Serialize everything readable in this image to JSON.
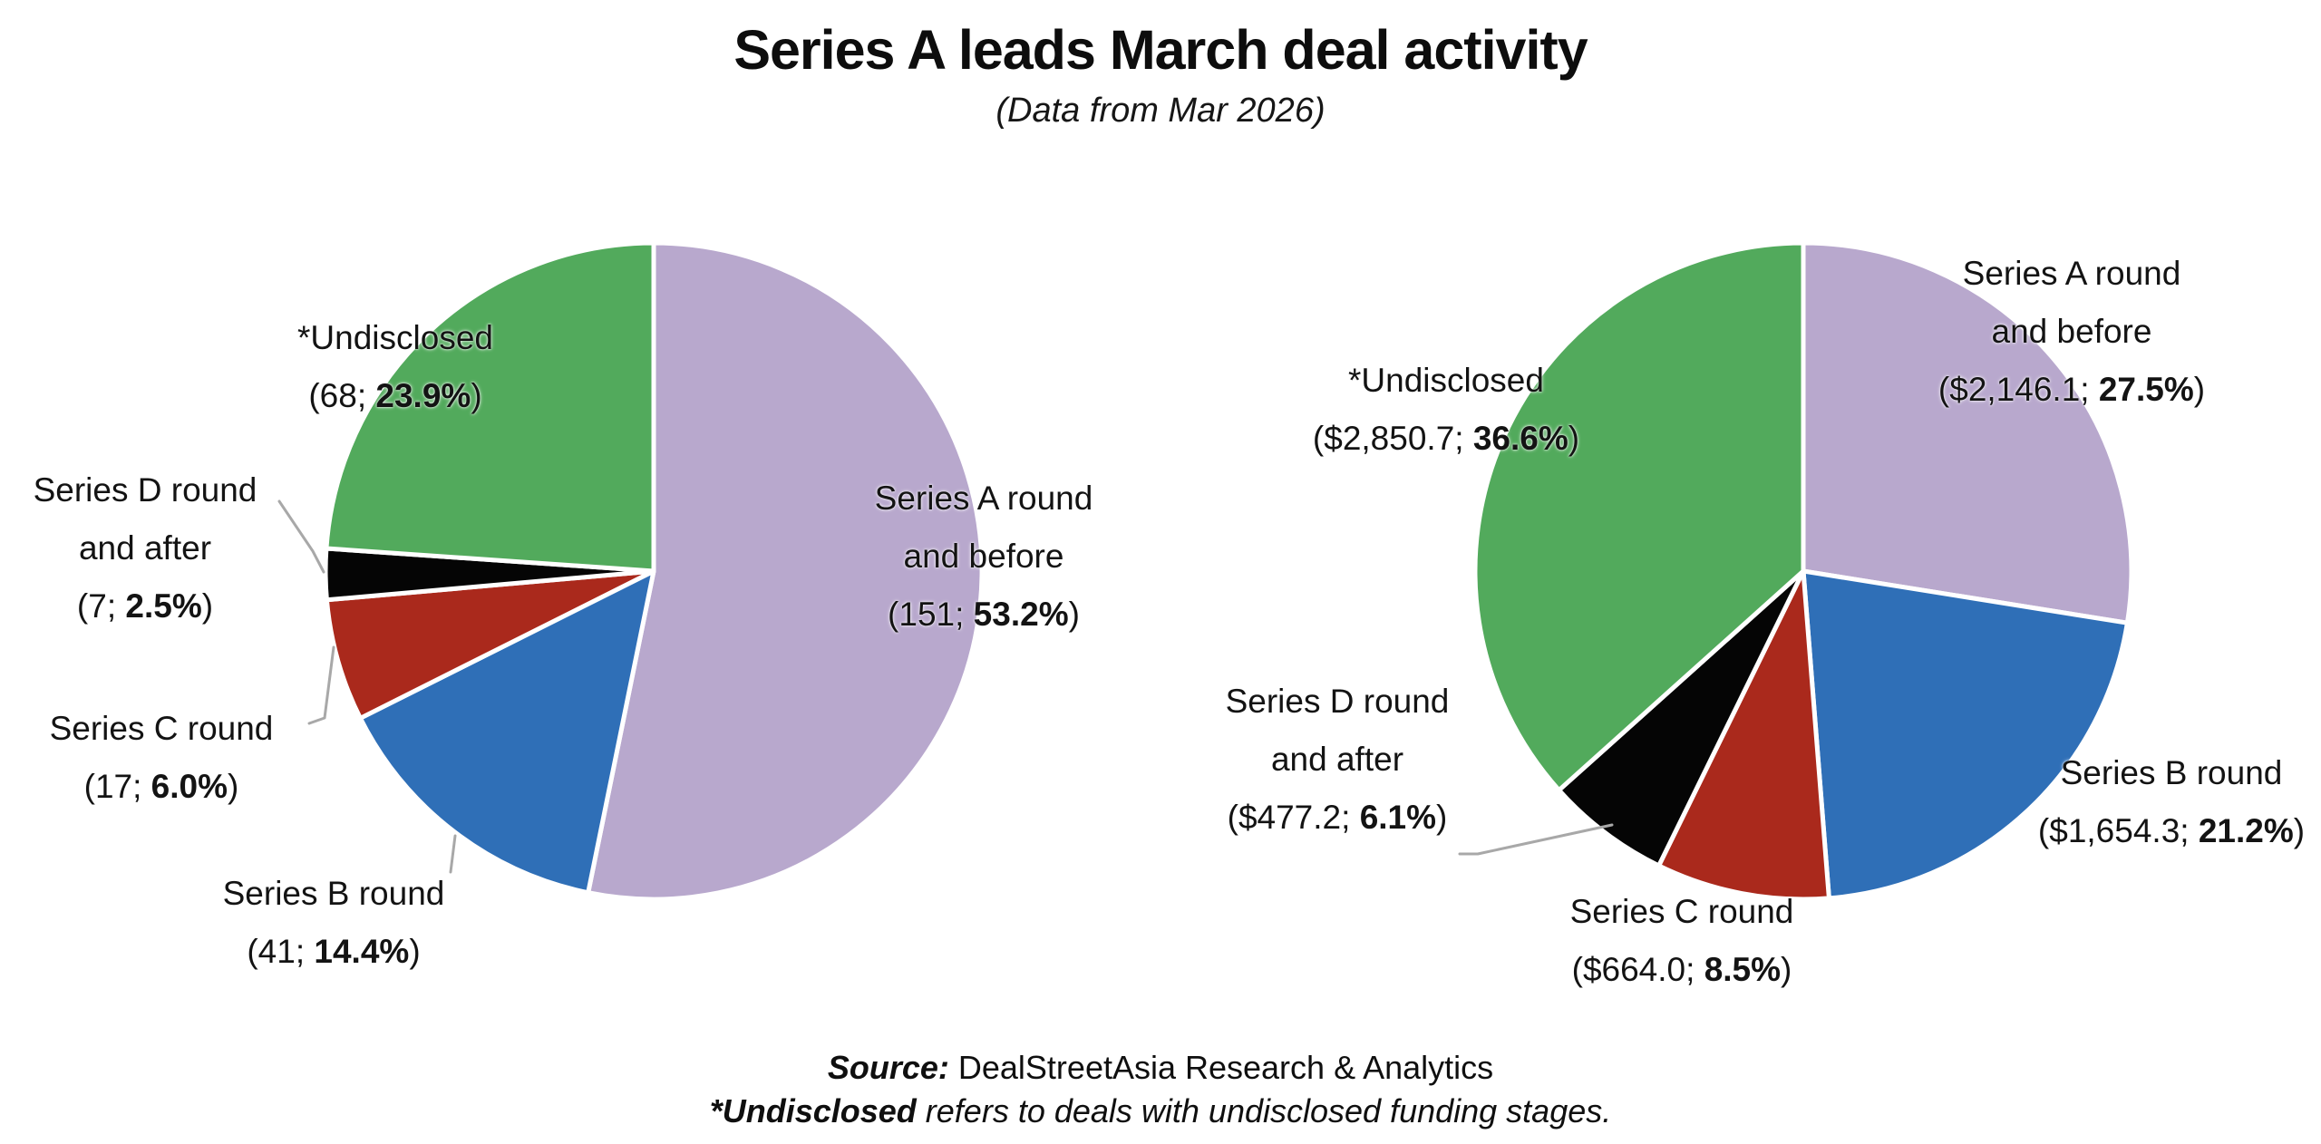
{
  "header": {
    "title": "Series A leads March deal activity",
    "subtitle": "(Data from Mar 2026)"
  },
  "footer": {
    "source_label": "Source:",
    "source_text": " DealStreetAsia Research & Analytics",
    "footnote_lead": "*Undisclosed",
    "footnote_text": " refers to deals with undisclosed funding stages."
  },
  "chart_data": [
    {
      "type": "pie",
      "name": "deal_count_by_funding_stage",
      "value_format": "deal_count",
      "start_angle_deg": 0,
      "direction": "clockwise",
      "slices": [
        {
          "label": "Series A round and before",
          "value": 151,
          "pct": 53.2,
          "color": "#b8a8cd",
          "annotation_lines": [
            "Series A round",
            "and before"
          ],
          "value_prefix": "(151; ",
          "pct_text": "53.2%",
          "value_suffix": ")"
        },
        {
          "label": "Series B round",
          "value": 41,
          "pct": 14.4,
          "color": "#2f6fb7",
          "annotation_lines": [
            "Series B round"
          ],
          "value_prefix": "(41; ",
          "pct_text": "14.4%",
          "value_suffix": ")"
        },
        {
          "label": "Series C round",
          "value": 17,
          "pct": 6.0,
          "color": "#aa291c",
          "annotation_lines": [
            "Series C round"
          ],
          "value_prefix": "(17; ",
          "pct_text": "6.0%",
          "value_suffix": ")"
        },
        {
          "label": "Series D round and after",
          "value": 7,
          "pct": 2.5,
          "color": "#050505",
          "annotation_lines": [
            "Series D round",
            "and after"
          ],
          "value_prefix": "(7; ",
          "pct_text": "2.5%",
          "value_suffix": ")"
        },
        {
          "label": "*Undisclosed",
          "value": 68,
          "pct": 23.9,
          "color": "#52aa5c",
          "annotation_lines": [
            "*Undisclosed"
          ],
          "value_prefix": "(68; ",
          "pct_text": "23.9%",
          "value_suffix": ")"
        }
      ]
    },
    {
      "type": "pie",
      "name": "deal_value_by_funding_stage_usd_millions",
      "value_format": "usd_millions",
      "start_angle_deg": 0,
      "direction": "clockwise",
      "slices": [
        {
          "label": "Series A round and before",
          "value": 2146.1,
          "pct": 27.5,
          "color": "#b8a8cd",
          "annotation_lines": [
            "Series A round",
            "and before"
          ],
          "value_prefix": "($2,146.1; ",
          "pct_text": "27.5%",
          "value_suffix": ")"
        },
        {
          "label": "Series B round",
          "value": 1654.3,
          "pct": 21.2,
          "color": "#2f6fb7",
          "annotation_lines": [
            "Series B round"
          ],
          "value_prefix": "($1,654.3; ",
          "pct_text": "21.2%",
          "value_suffix": ")"
        },
        {
          "label": "Series C round",
          "value": 664.0,
          "pct": 8.5,
          "color": "#aa291c",
          "annotation_lines": [
            "Series C round"
          ],
          "value_prefix": "($664.0; ",
          "pct_text": "8.5%",
          "value_suffix": ")"
        },
        {
          "label": "Series D round and after",
          "value": 477.2,
          "pct": 6.1,
          "color": "#050505",
          "annotation_lines": [
            "Series D round",
            "and after"
          ],
          "value_prefix": "($477.2; ",
          "pct_text": "6.1%",
          "value_suffix": ")"
        },
        {
          "label": "*Undisclosed",
          "value": 2850.7,
          "pct": 36.6,
          "color": "#52aa5c",
          "annotation_lines": [
            "*Undisclosed"
          ],
          "value_prefix": "($2,850.7; ",
          "pct_text": "36.6%",
          "value_suffix": ")"
        }
      ]
    }
  ]
}
